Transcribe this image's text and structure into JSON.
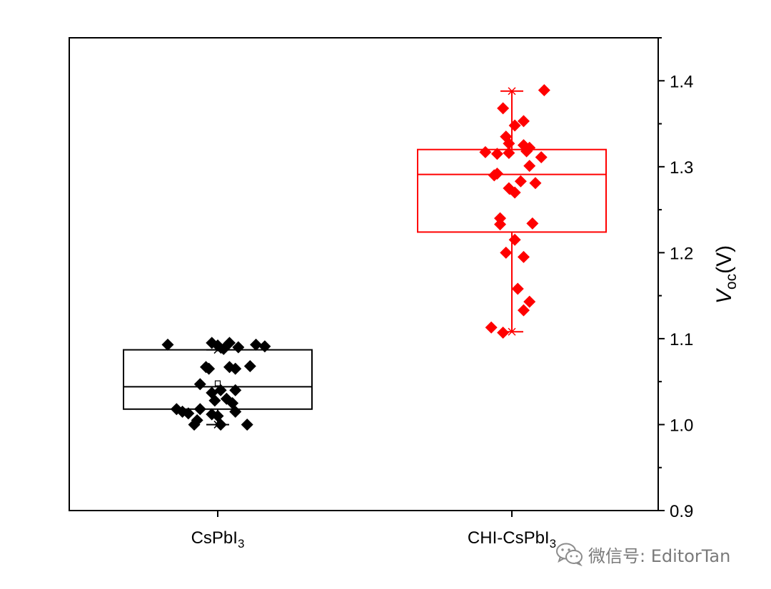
{
  "chart_data": {
    "type": "box",
    "categories": [
      "CsPbI3",
      "CHI-CsPbI3"
    ],
    "category_labels": [
      {
        "main": "CsPbI",
        "sub": "3"
      },
      {
        "main": "CHI-CsPbI",
        "sub": "3"
      }
    ],
    "ylabel": {
      "italic": "V",
      "sub": "oc",
      "unit": "(V)"
    },
    "ylim": [
      0.9,
      1.45
    ],
    "yticks": [
      0.9,
      1.0,
      1.1,
      1.2,
      1.3,
      1.4
    ],
    "ytick_labels": [
      "0.9",
      "1.0",
      "1.1",
      "1.2",
      "1.3",
      "1.4"
    ],
    "y_axis_side": "right",
    "grid": false,
    "series": [
      {
        "name": "CsPbI3",
        "color": "#000000",
        "box": {
          "q1": 1.018,
          "median": 1.044,
          "q3": 1.087,
          "whisker_low": 1.0,
          "whisker_high": 1.087,
          "mean": 1.048
        },
        "points": [
          {
            "x": -0.17,
            "y": 1.093
          },
          {
            "x": -0.02,
            "y": 1.095
          },
          {
            "x": 0.0,
            "y": 1.092
          },
          {
            "x": 0.02,
            "y": 1.088
          },
          {
            "x": 0.04,
            "y": 1.095
          },
          {
            "x": 0.07,
            "y": 1.09
          },
          {
            "x": 0.13,
            "y": 1.093
          },
          {
            "x": 0.16,
            "y": 1.091
          },
          {
            "x": -0.04,
            "y": 1.067
          },
          {
            "x": -0.03,
            "y": 1.065
          },
          {
            "x": 0.04,
            "y": 1.067
          },
          {
            "x": 0.06,
            "y": 1.065
          },
          {
            "x": 0.11,
            "y": 1.068
          },
          {
            "x": -0.06,
            "y": 1.047
          },
          {
            "x": -0.02,
            "y": 1.037
          },
          {
            "x": 0.01,
            "y": 1.04
          },
          {
            "x": 0.03,
            "y": 1.03
          },
          {
            "x": 0.06,
            "y": 1.04
          },
          {
            "x": -0.01,
            "y": 1.028
          },
          {
            "x": 0.05,
            "y": 1.025
          },
          {
            "x": -0.12,
            "y": 1.015
          },
          {
            "x": -0.1,
            "y": 1.013
          },
          {
            "x": -0.06,
            "y": 1.018
          },
          {
            "x": -0.02,
            "y": 1.012
          },
          {
            "x": 0.0,
            "y": 1.01
          },
          {
            "x": 0.06,
            "y": 1.015
          },
          {
            "x": -0.14,
            "y": 1.018
          },
          {
            "x": -0.07,
            "y": 1.005
          },
          {
            "x": -0.08,
            "y": 1.0
          },
          {
            "x": 0.01,
            "y": 1.0
          },
          {
            "x": 0.1,
            "y": 1.0
          }
        ]
      },
      {
        "name": "CHI-CsPbI3",
        "color": "#ff0000",
        "box": {
          "q1": 1.224,
          "median": 1.291,
          "q3": 1.32,
          "whisker_low": 1.108,
          "whisker_high": 1.388,
          "mean": 1.271
        },
        "points": [
          {
            "x": 0.11,
            "y": 1.389
          },
          {
            "x": -0.03,
            "y": 1.368
          },
          {
            "x": 0.04,
            "y": 1.353
          },
          {
            "x": 0.01,
            "y": 1.348
          },
          {
            "x": -0.02,
            "y": 1.335
          },
          {
            "x": 0.04,
            "y": 1.325
          },
          {
            "x": 0.06,
            "y": 1.322
          },
          {
            "x": -0.01,
            "y": 1.327
          },
          {
            "x": -0.09,
            "y": 1.317
          },
          {
            "x": -0.05,
            "y": 1.315
          },
          {
            "x": -0.01,
            "y": 1.316
          },
          {
            "x": 0.05,
            "y": 1.318
          },
          {
            "x": 0.1,
            "y": 1.311
          },
          {
            "x": 0.06,
            "y": 1.301
          },
          {
            "x": -0.06,
            "y": 1.29
          },
          {
            "x": -0.05,
            "y": 1.292
          },
          {
            "x": 0.03,
            "y": 1.283
          },
          {
            "x": 0.08,
            "y": 1.281
          },
          {
            "x": -0.01,
            "y": 1.275
          },
          {
            "x": 0.01,
            "y": 1.27
          },
          {
            "x": -0.04,
            "y": 1.24
          },
          {
            "x": -0.04,
            "y": 1.233
          },
          {
            "x": 0.07,
            "y": 1.234
          },
          {
            "x": 0.01,
            "y": 1.215
          },
          {
            "x": -0.02,
            "y": 1.2
          },
          {
            "x": 0.04,
            "y": 1.195
          },
          {
            "x": 0.02,
            "y": 1.158
          },
          {
            "x": 0.06,
            "y": 1.143
          },
          {
            "x": 0.04,
            "y": 1.133
          },
          {
            "x": -0.07,
            "y": 1.113
          },
          {
            "x": -0.03,
            "y": 1.107
          }
        ]
      }
    ]
  },
  "watermark": {
    "text": "微信号: EditorTan",
    "icon": "wechat-icon"
  }
}
